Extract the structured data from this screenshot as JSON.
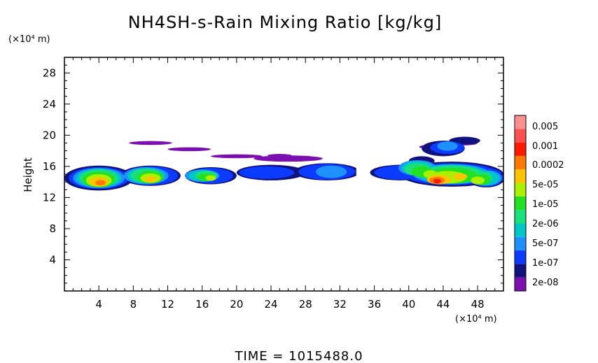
{
  "chart_data": {
    "type": "heatmap",
    "title": "NH4SH-s-Rain Mixing Ratio [kg/kg]",
    "ylabel": "Height",
    "y_unit": "(×10⁴ m)",
    "x_unit": "(×10⁴ m)",
    "xlim": [
      0,
      51
    ],
    "ylim": [
      0,
      30
    ],
    "x_ticks": [
      4,
      8,
      12,
      16,
      20,
      24,
      28,
      32,
      36,
      40,
      44,
      48
    ],
    "y_ticks": [
      4,
      8,
      12,
      16,
      20,
      24,
      28
    ],
    "time_label": "TIME = 1015488.0",
    "colorbar": {
      "levels": [
        "2e-08",
        "1e-07",
        "5e-07",
        "2e-06",
        "1e-05",
        "5e-05",
        "0.0002",
        "0.001",
        "0.005"
      ],
      "colors": [
        "#7b0fb0",
        "#12127f",
        "#0b3bff",
        "#1e90ff",
        "#00c8c8",
        "#19e07a",
        "#22e022",
        "#aaf000",
        "#ffc400",
        "#ff7a00",
        "#ff1a00",
        "#ff5050",
        "#ff9090"
      ]
    },
    "layers": [
      {
        "color": "#7b0fb0",
        "blobs": [
          [
            10,
            19.0,
            2.5,
            0.25
          ],
          [
            14.5,
            18.2,
            2.5,
            0.25
          ],
          [
            20,
            17.3,
            3,
            0.25
          ],
          [
            25,
            17.4,
            1.4,
            0.2
          ],
          [
            26,
            17.0,
            4,
            0.4
          ],
          [
            43,
            18.5,
            1.8,
            0.3
          ],
          [
            46.5,
            19.0,
            1.5,
            0.3
          ],
          [
            40.5,
            15.6,
            1.0,
            0.4
          ]
        ]
      },
      {
        "color": "#12127f",
        "blobs": [
          [
            4,
            14.5,
            4,
            1.6
          ],
          [
            10,
            14.8,
            3.5,
            1.3
          ],
          [
            17,
            14.8,
            3,
            1.1
          ],
          [
            24,
            15.2,
            4,
            1.0
          ],
          [
            30.5,
            15.3,
            3.8,
            1.1
          ],
          [
            39,
            15.2,
            3.5,
            1.0
          ],
          [
            45,
            15.0,
            6,
            1.6
          ],
          [
            49,
            14.6,
            2.2,
            1.3
          ],
          [
            44,
            18.3,
            2.5,
            1.0
          ],
          [
            46.5,
            19.3,
            1.8,
            0.5
          ],
          [
            41.5,
            16.7,
            1.5,
            0.6
          ]
        ]
      },
      {
        "color": "#0b3bff",
        "blobs": [
          [
            4,
            14.5,
            3.5,
            1.4
          ],
          [
            10,
            14.8,
            3.2,
            1.2
          ],
          [
            17,
            14.8,
            2.6,
            1.0
          ],
          [
            23.5,
            15.2,
            3.2,
            0.8
          ],
          [
            30.5,
            15.3,
            3.3,
            1.0
          ],
          [
            39,
            15.2,
            3.0,
            0.9
          ],
          [
            45,
            15.0,
            5.5,
            1.4
          ],
          [
            49,
            14.6,
            2.0,
            1.2
          ],
          [
            44.5,
            18.4,
            2,
            0.8
          ]
        ]
      },
      {
        "color": "#1e90ff",
        "blobs": [
          [
            4,
            14.5,
            3,
            1.3
          ],
          [
            9.5,
            14.8,
            2.6,
            1.1
          ],
          [
            16,
            14.8,
            2,
            0.8
          ],
          [
            31,
            15.3,
            1.8,
            0.8
          ],
          [
            41,
            15.8,
            2.2,
            1.0
          ],
          [
            45,
            15.0,
            4.5,
            1.3
          ],
          [
            49,
            14.5,
            1.8,
            1.0
          ],
          [
            44.5,
            18.6,
            1.2,
            0.6
          ]
        ]
      },
      {
        "color": "#00c8c8",
        "blobs": [
          [
            4,
            14.5,
            2.6,
            1.2
          ],
          [
            9.5,
            14.8,
            2.2,
            1.0
          ],
          [
            16,
            14.8,
            1.6,
            0.7
          ],
          [
            41,
            15.8,
            1.8,
            0.9
          ],
          [
            45,
            15.0,
            4,
            1.2
          ],
          [
            49,
            14.5,
            1.5,
            0.9
          ]
        ]
      },
      {
        "color": "#19e07a",
        "blobs": [
          [
            4,
            14.5,
            2.2,
            1.1
          ],
          [
            9.5,
            14.8,
            1.8,
            0.9
          ],
          [
            16.5,
            14.8,
            1.3,
            0.6
          ],
          [
            41,
            15.6,
            1.5,
            0.8
          ],
          [
            45,
            15.0,
            3.5,
            1.1
          ],
          [
            48.5,
            14.5,
            1.2,
            0.8
          ]
        ]
      },
      {
        "color": "#22e022",
        "blobs": [
          [
            4,
            14.3,
            1.9,
            1.0
          ],
          [
            10,
            14.6,
            1.5,
            0.8
          ],
          [
            16.5,
            14.6,
            1.0,
            0.5
          ],
          [
            41.5,
            15.3,
            1.2,
            0.7
          ],
          [
            45,
            14.8,
            3.0,
            1.0
          ],
          [
            48.5,
            14.3,
            1.0,
            0.7
          ]
        ]
      },
      {
        "color": "#aaf000",
        "blobs": [
          [
            4,
            14.2,
            1.5,
            0.8
          ],
          [
            10,
            14.5,
            1.2,
            0.6
          ],
          [
            17,
            14.5,
            0.6,
            0.35
          ],
          [
            42.5,
            15.0,
            0.8,
            0.5
          ],
          [
            44.5,
            14.6,
            2.2,
            0.8
          ],
          [
            48,
            14.2,
            0.8,
            0.5
          ]
        ]
      },
      {
        "color": "#ffc400",
        "blobs": [
          [
            4,
            14.0,
            1.1,
            0.6
          ],
          [
            10,
            14.3,
            0.7,
            0.4
          ],
          [
            43.5,
            14.3,
            1.4,
            0.6
          ],
          [
            46,
            14.7,
            0.8,
            0.4
          ]
        ]
      },
      {
        "color": "#ff7a00",
        "blobs": [
          [
            4.2,
            13.9,
            0.6,
            0.35
          ],
          [
            43.3,
            14.2,
            0.9,
            0.45
          ]
        ]
      },
      {
        "color": "#ff1a00",
        "blobs": [
          [
            43.3,
            14.1,
            0.45,
            0.3
          ]
        ]
      }
    ]
  }
}
